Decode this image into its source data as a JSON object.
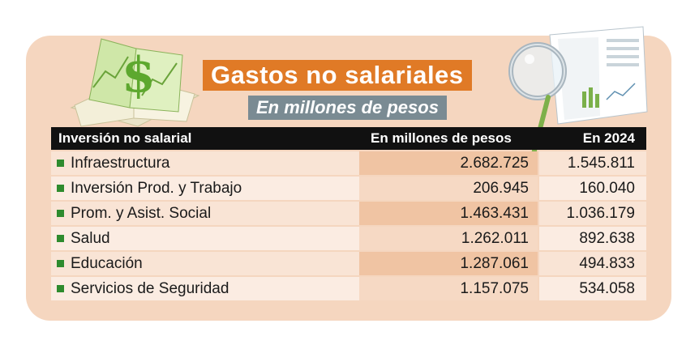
{
  "title": "Gastos no salariales",
  "subtitle": "En millones de pesos",
  "colors": {
    "card": "#f5d6bf",
    "title_bg": "#e07a26",
    "subtitle_bg": "#7a8b93",
    "header_bg": "#111111",
    "bullet": "#2e8b2e"
  },
  "icons": [
    "money-book-icon",
    "magnifier-report-icon"
  ],
  "chart_data": {
    "type": "table",
    "title": "Gastos no salariales",
    "subtitle": "En millones de pesos",
    "columns": [
      "Inversión no salarial",
      "En millones de pesos",
      "En 2024"
    ],
    "rows": [
      {
        "label": "Infraestructura",
        "total": "2.682.725",
        "y2024": "1.545.811"
      },
      {
        "label": "Inversión Prod. y Trabajo",
        "total": "206.945",
        "y2024": "160.040"
      },
      {
        "label": "Prom. y Asist. Social",
        "total": "1.463.431",
        "y2024": "1.036.179"
      },
      {
        "label": "Salud",
        "total": "1.262.011",
        "y2024": "892.638"
      },
      {
        "label": "Educación",
        "total": "1.287.061",
        "y2024": "494.833"
      },
      {
        "label": "Servicios de Seguridad",
        "total": "1.157.075",
        "y2024": "534.058"
      }
    ]
  }
}
